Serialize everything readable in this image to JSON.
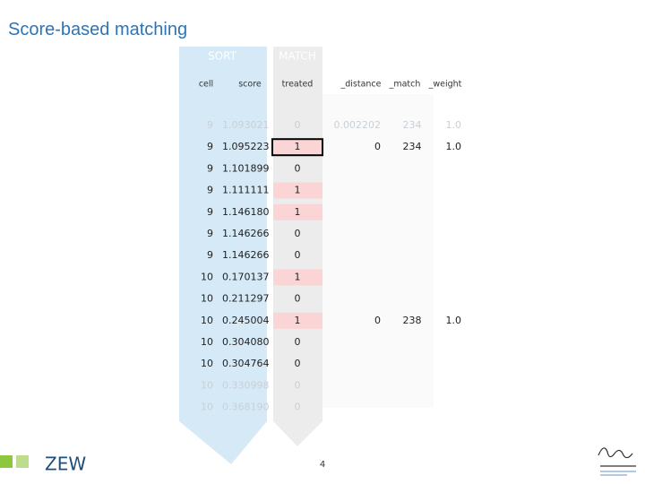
{
  "header": {
    "title": "Score-based matching"
  },
  "arrows": {
    "sort": "SORT",
    "match": "MATCH"
  },
  "table": {
    "columns": [
      "cell",
      "score",
      "treated",
      "_distance",
      "_match",
      "_weight"
    ],
    "rows": [
      {
        "cells": [
          "9",
          "1.093021",
          "0",
          "0.002202",
          "234",
          "1.0"
        ],
        "faded": true
      },
      {
        "cells": [
          "9",
          "1.095223",
          "1",
          "0",
          "234",
          "1.0"
        ],
        "selected": true
      },
      {
        "cells": [
          "9",
          "1.101899",
          "0"
        ]
      },
      {
        "cells": [
          "9",
          "1.111111",
          "1"
        ]
      },
      {
        "cells": [
          "9",
          "1.146180",
          "1"
        ]
      },
      {
        "cells": [
          "9",
          "1.146266",
          "0"
        ]
      },
      {
        "cells": [
          "9",
          "1.146266",
          "0"
        ]
      },
      {
        "cells": [
          "10",
          "0.170137",
          "1"
        ]
      },
      {
        "cells": [
          "10",
          "0.211297",
          "0"
        ]
      },
      {
        "cells": [
          "10",
          "0.245004",
          "1",
          "0",
          "238",
          "1.0"
        ]
      },
      {
        "cells": [
          "10",
          "0.304080",
          "0"
        ]
      },
      {
        "cells": [
          "10",
          "0.304764",
          "0"
        ]
      },
      {
        "cells": [
          "10",
          "0.330998",
          "0"
        ],
        "faded": true
      },
      {
        "cells": [
          "10",
          "0.368190",
          "0"
        ],
        "faded": true
      }
    ]
  },
  "footer": {
    "page": "4",
    "logo": "ZEW"
  }
}
